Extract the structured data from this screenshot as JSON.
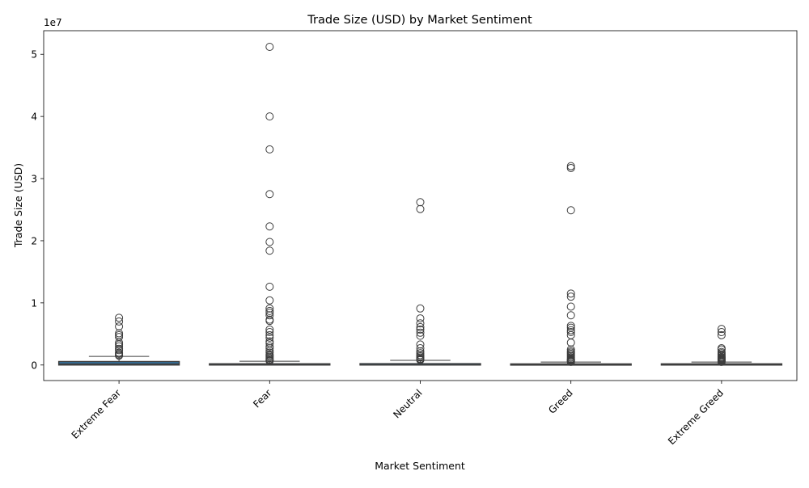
{
  "chart_data": {
    "type": "box",
    "title": "Trade Size (USD) by Market Sentiment",
    "xlabel": "Market Sentiment",
    "ylabel": "Trade Size (USD)",
    "y_offset_label": "1e7",
    "y_tick_values": [
      0,
      10000000,
      20000000,
      30000000,
      40000000,
      50000000
    ],
    "y_tick_labels": [
      "0",
      "1",
      "2",
      "3",
      "4",
      "5"
    ],
    "ylim": [
      -2500000,
      53800000
    ],
    "grid": false,
    "legend": "none",
    "box_color": "#3274a1",
    "categories": [
      "Extreme Fear",
      "Fear",
      "Neutral",
      "Greed",
      "Extreme Greed"
    ],
    "boxes": [
      {
        "q1": 0,
        "median": 180000,
        "q3": 560000,
        "whisker_low": 0,
        "whisker_high": 1380000
      },
      {
        "q1": 0,
        "median": 30000,
        "q3": 200000,
        "whisker_low": 0,
        "whisker_high": 600000
      },
      {
        "q1": 0,
        "median": 30000,
        "q3": 220000,
        "whisker_low": 0,
        "whisker_high": 750000
      },
      {
        "q1": 0,
        "median": 30000,
        "q3": 180000,
        "whisker_low": 0,
        "whisker_high": 480000
      },
      {
        "q1": 0,
        "median": 30000,
        "q3": 190000,
        "whisker_low": 0,
        "whisker_high": 470000
      }
    ],
    "outliers": [
      [
        7600000,
        7000000,
        6200000,
        5100000,
        4800000,
        4500000,
        3600000,
        3300000,
        3000000,
        2600000,
        2400000,
        2000000,
        1800000,
        1600000,
        1500000
      ],
      [
        51200000,
        40000000,
        34700000,
        27500000,
        22300000,
        19800000,
        18400000,
        12600000,
        10400000,
        9100000,
        8700000,
        8400000,
        8000000,
        7300000,
        7100000,
        5700000,
        5300000,
        4800000,
        4400000,
        3800000,
        3500000,
        3000000,
        2700000,
        2300000,
        2000000,
        1700000,
        1500000,
        1300000,
        1100000,
        900000,
        750000,
        650000
      ],
      [
        26200000,
        25100000,
        9100000,
        7500000,
        6700000,
        6100000,
        5700000,
        5200000,
        4700000,
        3300000,
        2700000,
        2200000,
        1900000,
        1600000,
        1400000,
        1200000,
        1000000,
        900000,
        800000
      ],
      [
        32000000,
        31700000,
        24900000,
        11500000,
        11000000,
        9400000,
        8000000,
        6300000,
        6000000,
        5600000,
        5300000,
        4800000,
        3600000,
        2500000,
        2200000,
        2000000,
        1800000,
        1600000,
        1400000,
        1200000,
        1000000,
        900000,
        800000,
        700000,
        600000,
        500000
      ],
      [
        5800000,
        5300000,
        4800000,
        2700000,
        2500000,
        2100000,
        1900000,
        1700000,
        1500000,
        1300000,
        1200000,
        1100000,
        1000000,
        900000,
        800000,
        700000,
        600000,
        500000
      ]
    ]
  }
}
